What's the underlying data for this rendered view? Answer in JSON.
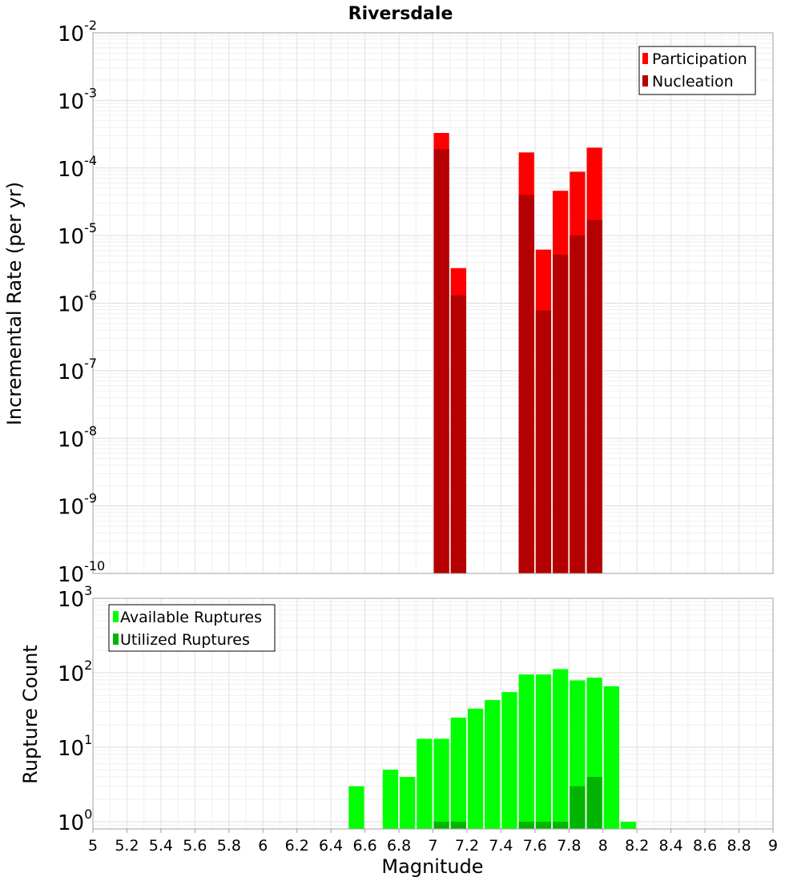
{
  "chart_data": [
    {
      "type": "bar",
      "title": "Riversdale",
      "xlabel": "",
      "ylabel": "Incremental Rate (per yr)",
      "yscale": "log",
      "ylim": [
        1e-10,
        0.01
      ],
      "xlim": [
        5,
        9
      ],
      "bar_width": 0.1,
      "legend_position": "top-right",
      "grid": true,
      "series": [
        {
          "name": "Participation",
          "color": "#ff0000",
          "x": [
            7.05,
            7.15,
            7.55,
            7.65,
            7.75,
            7.85,
            7.95
          ],
          "values": [
            0.00033,
            3.3e-06,
            0.00017,
            6.2e-06,
            4.6e-05,
            8.8e-05,
            0.0002
          ]
        },
        {
          "name": "Nucleation",
          "color": "#b40000",
          "x": [
            7.05,
            7.15,
            7.55,
            7.65,
            7.75,
            7.85,
            7.95
          ],
          "values": [
            0.00019,
            1.3e-06,
            4e-05,
            7.8e-07,
            5.2e-06,
            1e-05,
            1.7e-05
          ]
        }
      ]
    },
    {
      "type": "bar",
      "title": "",
      "xlabel": "Magnitude",
      "ylabel": "Rupture Count",
      "yscale": "log",
      "ylim": [
        0.8,
        1000
      ],
      "xlim": [
        5,
        9
      ],
      "bar_width": 0.1,
      "legend_position": "top-left",
      "grid": true,
      "series": [
        {
          "name": "Available Ruptures",
          "color": "#00ff00",
          "x": [
            6.55,
            6.75,
            6.85,
            6.95,
            7.05,
            7.15,
            7.25,
            7.35,
            7.45,
            7.55,
            7.65,
            7.75,
            7.85,
            7.95,
            8.05,
            8.15
          ],
          "values": [
            3,
            5,
            4,
            13,
            13,
            25,
            33,
            43,
            55,
            95,
            95,
            112,
            79,
            86,
            66,
            1
          ]
        },
        {
          "name": "Utilized Ruptures",
          "color": "#00b400",
          "x": [
            7.05,
            7.15,
            7.55,
            7.65,
            7.75,
            7.85,
            7.95
          ],
          "values": [
            1,
            1,
            1,
            1,
            1,
            3,
            4
          ]
        }
      ]
    }
  ],
  "x_ticks": [
    "5",
    "5.2",
    "5.4",
    "5.6",
    "5.8",
    "6",
    "6.2",
    "6.4",
    "6.6",
    "6.8",
    "7",
    "7.2",
    "7.4",
    "7.6",
    "7.8",
    "8",
    "8.2",
    "8.4",
    "8.6",
    "8.8",
    "9"
  ],
  "y_ticks_top": [
    {
      "base": "10",
      "exp": "-2"
    },
    {
      "base": "10",
      "exp": "-3"
    },
    {
      "base": "10",
      "exp": "-4"
    },
    {
      "base": "10",
      "exp": "-5"
    },
    {
      "base": "10",
      "exp": "-6"
    },
    {
      "base": "10",
      "exp": "-7"
    },
    {
      "base": "10",
      "exp": "-8"
    },
    {
      "base": "10",
      "exp": "-9"
    },
    {
      "base": "10",
      "exp": "-10"
    }
  ],
  "y_ticks_bottom": [
    {
      "base": "10",
      "exp": "3"
    },
    {
      "base": "10",
      "exp": "2"
    },
    {
      "base": "10",
      "exp": "1"
    },
    {
      "base": "10",
      "exp": "0"
    }
  ]
}
